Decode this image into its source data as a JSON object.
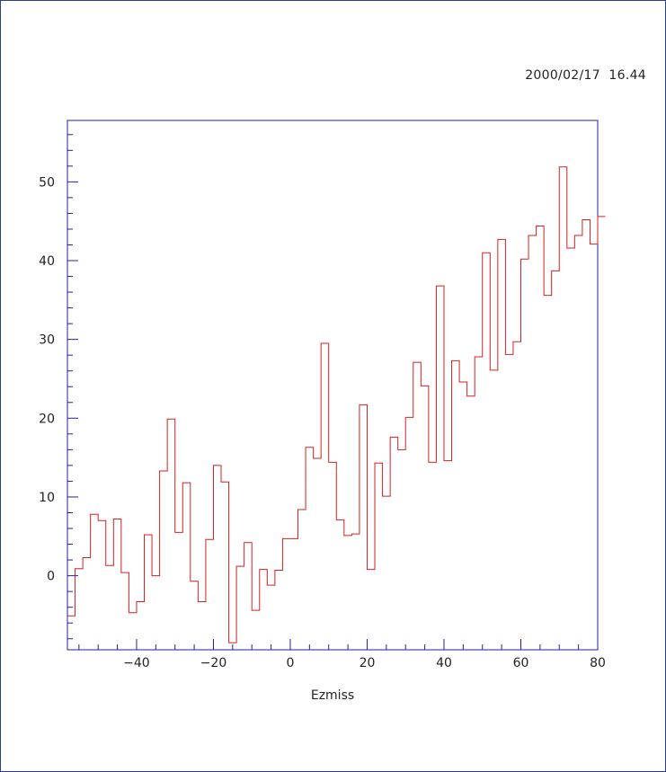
{
  "header": {
    "timestamp": "2000/02/17  16.44"
  },
  "colors": {
    "frame": "#2a3f8f",
    "axes": "#1f1fa8",
    "histogram": "#d42020"
  },
  "chart_data": {
    "type": "histogram",
    "title": "",
    "xlabel": "Ezmiss",
    "ylabel": "",
    "xlim": [
      -58,
      80
    ],
    "ylim": [
      -9.4,
      57.8
    ],
    "x_tick_labels": [
      "−40",
      "−20",
      "0",
      "20",
      "40",
      "60",
      "80"
    ],
    "y_tick_labels": [
      "0",
      "10",
      "20",
      "30",
      "40",
      "50"
    ],
    "grid": false,
    "legend": "none",
    "bin_width": 2,
    "series": [
      {
        "bin_edges_start": -58,
        "values": [
          -5.1,
          0.9,
          2.3,
          7.8,
          7.0,
          1.3,
          7.2,
          0.4,
          -4.7,
          -3.3,
          5.2,
          0.0,
          13.3,
          19.9,
          5.5,
          11.8,
          -0.7,
          -3.3,
          4.6,
          14.0,
          11.9,
          -8.5,
          1.2,
          4.2,
          -4.4,
          0.8,
          -1.2,
          0.7,
          4.7,
          4.7,
          8.4,
          16.3,
          14.9,
          29.5,
          14.4,
          7.1,
          5.1,
          5.3,
          21.7,
          0.8,
          14.3,
          10.1,
          17.6,
          16.0,
          20.1,
          27.1,
          24.1,
          14.4,
          36.8,
          14.6,
          27.3,
          24.6,
          22.8,
          27.8,
          41.0,
          26.1,
          42.7,
          28.1,
          29.7,
          40.2,
          43.2,
          44.4,
          35.6,
          38.7,
          51.9,
          41.6,
          43.2,
          45.2,
          42.1,
          45.6
        ]
      }
    ]
  }
}
